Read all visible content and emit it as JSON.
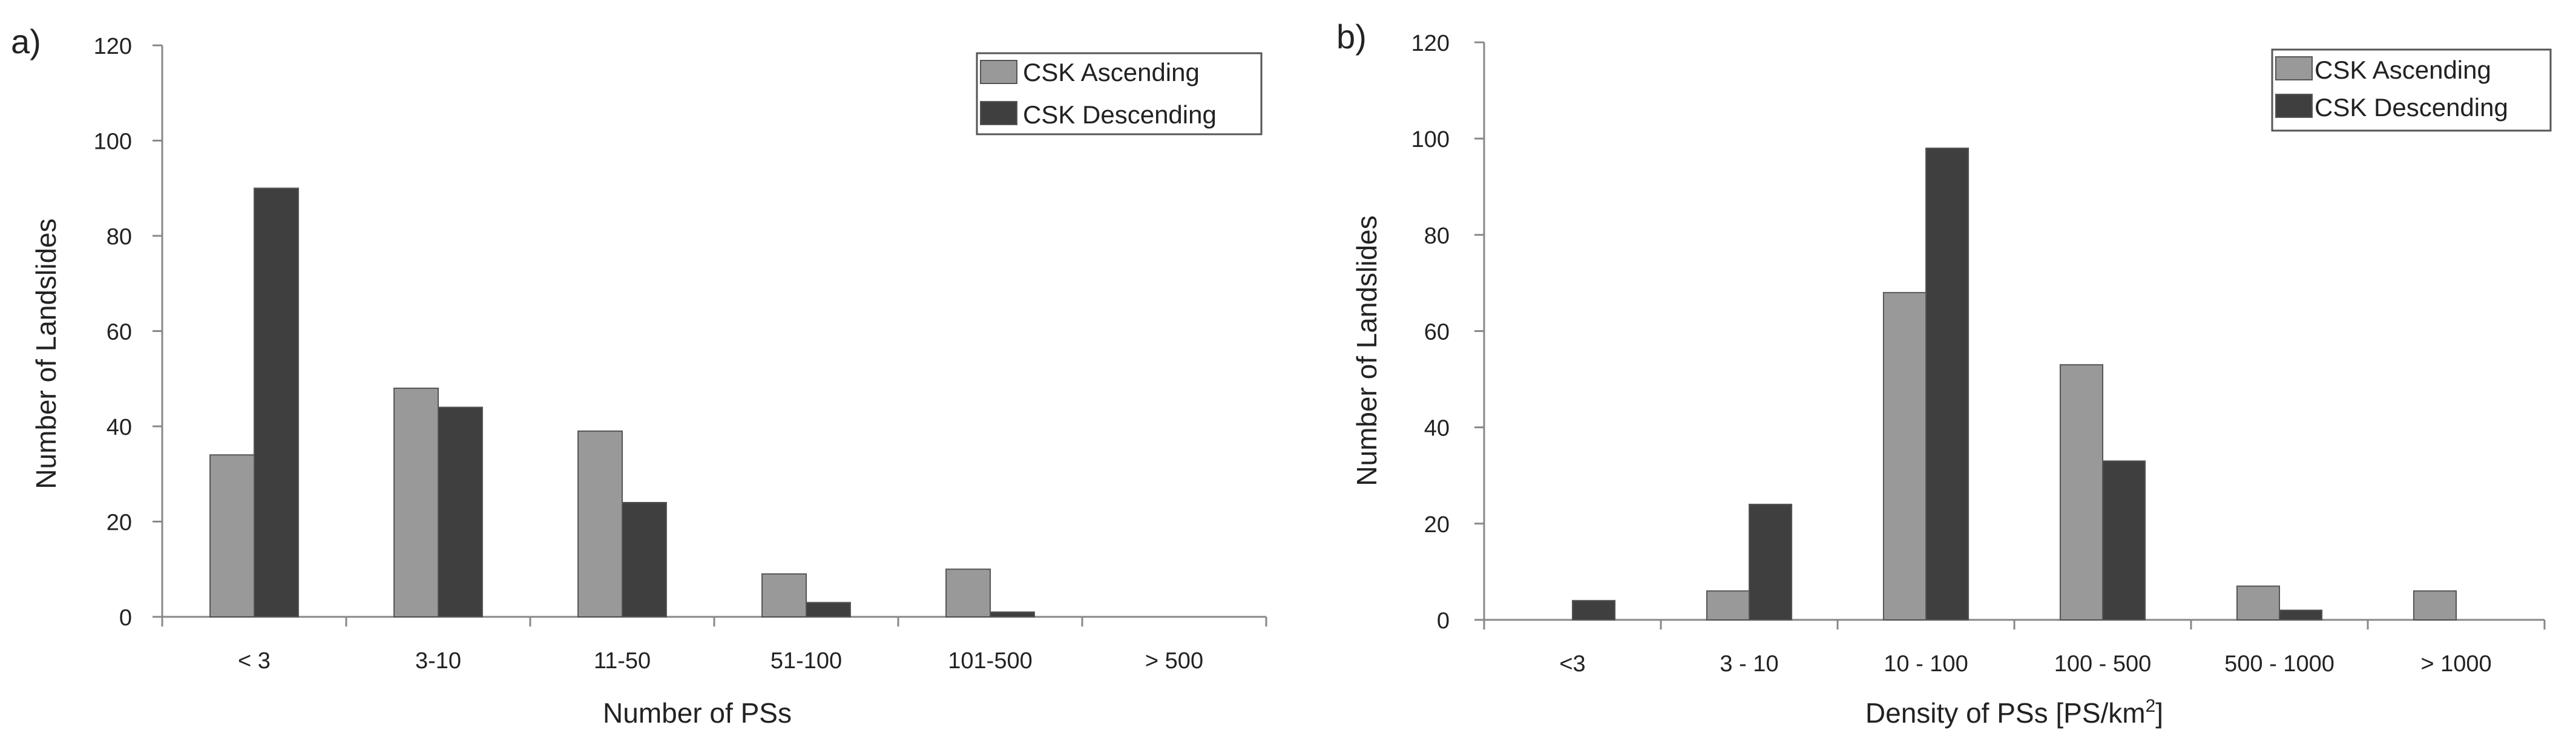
{
  "colors": {
    "ascending": "#999999",
    "descending": "#3f3f3f",
    "axis": "#888888",
    "text": "#222222"
  },
  "chart_data": [
    {
      "panel_label": "a)",
      "type": "bar",
      "categories": [
        "< 3",
        "3-10",
        "11-50",
        "51-100",
        "101-500",
        "> 500"
      ],
      "series": [
        {
          "name": "CSK Ascending",
          "values": [
            34,
            48,
            39,
            9,
            10,
            0
          ]
        },
        {
          "name": "CSK Descending",
          "values": [
            90,
            44,
            24,
            3,
            1,
            0
          ]
        }
      ],
      "xlabel": "Number of PSs",
      "ylabel": "Number of Landslides",
      "ylim": [
        0,
        120
      ],
      "yticks": [
        "0",
        "20",
        "40",
        "60",
        "80",
        "100",
        "120"
      ],
      "legend": "top-right",
      "grid": false
    },
    {
      "panel_label": "b)",
      "type": "bar",
      "categories": [
        "<3",
        "3 - 10",
        "10 - 100",
        "100 - 500",
        "500 - 1000",
        "> 1000"
      ],
      "series": [
        {
          "name": "CSK Ascending",
          "values": [
            0,
            6,
            68,
            53,
            7,
            6
          ]
        },
        {
          "name": "CSK Descending",
          "values": [
            4,
            24,
            98,
            33,
            2,
            0
          ]
        }
      ],
      "xlabel_main": "Density of PSs [PS/km",
      "xlabel_sup": "2",
      "xlabel_end": "]",
      "ylabel": "Number of Landslides",
      "ylim": [
        0,
        120
      ],
      "yticks": [
        "0",
        "20",
        "40",
        "60",
        "80",
        "100",
        "120"
      ],
      "legend": "top-right",
      "grid": false
    }
  ]
}
